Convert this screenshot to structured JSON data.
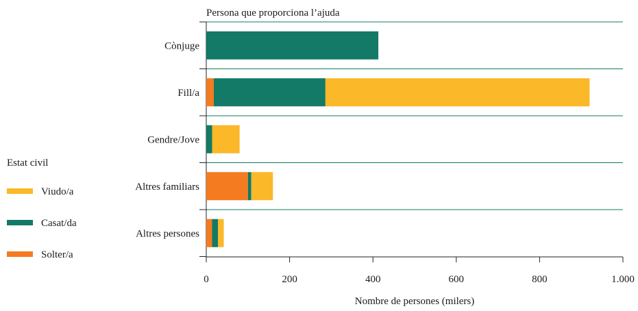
{
  "chart_data": {
    "type": "bar",
    "orientation": "horizontal",
    "stacked": true,
    "title": "Persona que proporciona l’ajuda",
    "xlabel": "Nombre de persones (milers)",
    "ylabel": "",
    "xlim": [
      0,
      1000
    ],
    "x_ticks": [
      "0",
      "200",
      "400",
      "600",
      "800",
      "1.000"
    ],
    "x_tick_values": [
      0,
      200,
      400,
      600,
      800,
      1000
    ],
    "categories": [
      "Cònjuge",
      "Fill/a",
      "Gendre/Jove",
      "Altres familiars",
      "Altres persones"
    ],
    "series": [
      {
        "name": "Solter/a",
        "color": "#f47b20",
        "values": [
          0,
          18,
          0,
          100,
          14
        ]
      },
      {
        "name": "Casat/da",
        "color": "#127a66",
        "values": [
          413,
          268,
          14,
          8,
          14
        ]
      },
      {
        "name": "Viudo/a",
        "color": "#fbb829",
        "values": [
          0,
          634,
          66,
          52,
          14
        ]
      }
    ],
    "legend": {
      "title": "Estat civil",
      "placement": "left",
      "order": [
        "Viudo/a",
        "Casat/da",
        "Solter/a"
      ]
    },
    "grid": "horizontal separators between categories",
    "grid_color": "#127a66"
  }
}
